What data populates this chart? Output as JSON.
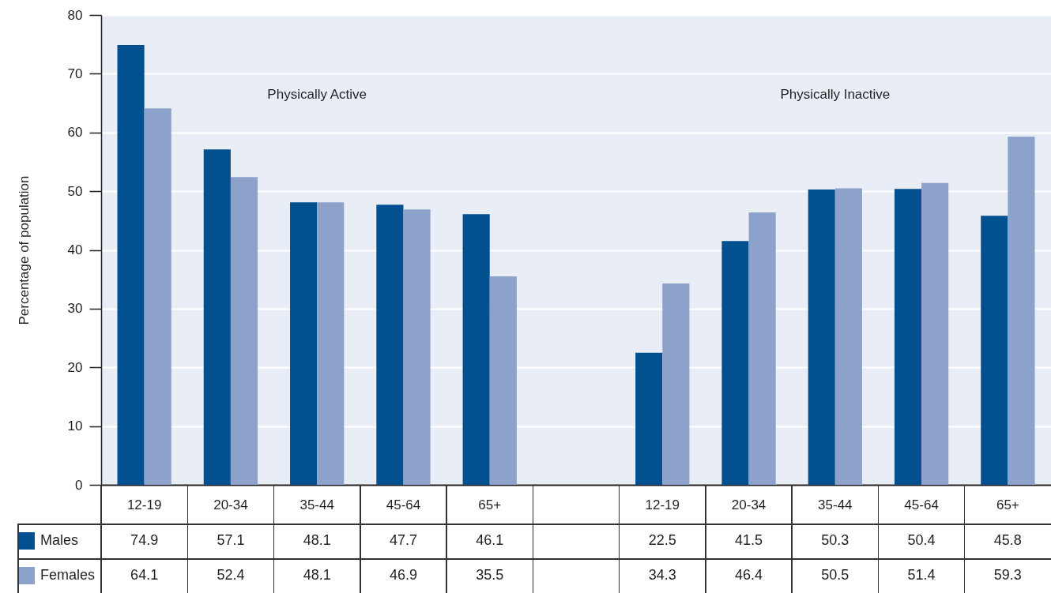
{
  "chart_data": {
    "type": "bar",
    "ylabel": "Percentage of population",
    "categories": [
      "12-19",
      "20-34",
      "35-44",
      "45-64",
      "65+",
      null,
      "12-19",
      "20-34",
      "35-44",
      "45-64",
      "65+"
    ],
    "series": [
      {
        "name": "Males",
        "color": "#02508f",
        "values": [
          74.9,
          57.1,
          48.1,
          47.7,
          46.1,
          null,
          22.5,
          41.5,
          50.3,
          50.4,
          45.8
        ]
      },
      {
        "name": "Females",
        "color": "#8ca2ca",
        "values": [
          64.1,
          52.4,
          48.1,
          46.9,
          35.5,
          null,
          34.3,
          46.4,
          50.5,
          51.4,
          59.3
        ]
      }
    ],
    "ylim": [
      0,
      80
    ],
    "yticks": [
      0,
      10,
      20,
      30,
      40,
      50,
      60,
      70,
      80
    ],
    "grid": "y",
    "legend": "bottom",
    "data_labels": true,
    "annotations": [
      "Physically Active",
      "Physically Inactive"
    ]
  }
}
